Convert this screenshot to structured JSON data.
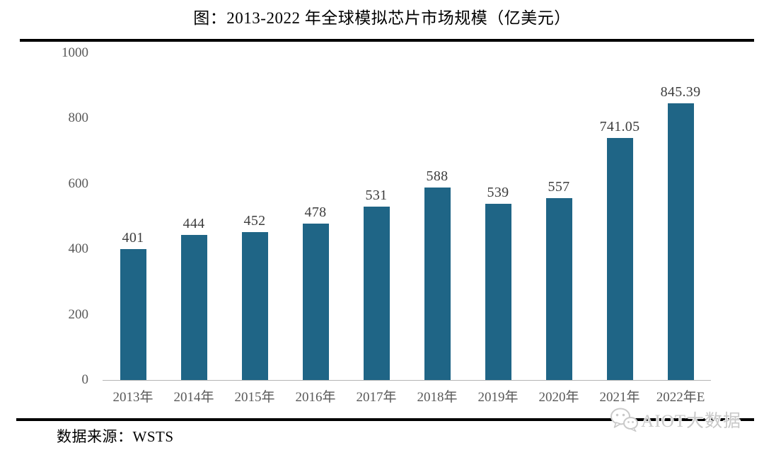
{
  "title": "图：2013-2022 年全球模拟芯片市场规模（亿美元）",
  "source": "数据来源：WSTS",
  "watermark": {
    "label": "AIOT大数据",
    "icon": "wechat-icon"
  },
  "colors": {
    "bar": "#1F6586",
    "axis_label": "#595959",
    "value_label": "#3d3d3d",
    "rule": "#000000",
    "baseline": "#b5b5b5",
    "watermark": "#c9c9c9"
  },
  "chart_data": {
    "type": "bar",
    "title": "图：2013-2022 年全球模拟芯片市场规模（亿美元）",
    "categories": [
      "2013年",
      "2014年",
      "2015年",
      "2016年",
      "2017年",
      "2018年",
      "2019年",
      "2020年",
      "2021年",
      "2022年E"
    ],
    "values": [
      401,
      444,
      452,
      478,
      531,
      588,
      539,
      557,
      741.05,
      845.39
    ],
    "value_labels": [
      "401",
      "444",
      "452",
      "478",
      "531",
      "588",
      "539",
      "557",
      "741.05",
      "845.39"
    ],
    "xlabel": "",
    "ylabel": "",
    "ylim": [
      0,
      1000
    ],
    "yticks": [
      0,
      200,
      400,
      600,
      800,
      1000
    ],
    "grid": false,
    "legend": false,
    "source_label": "数据来源：WSTS"
  }
}
